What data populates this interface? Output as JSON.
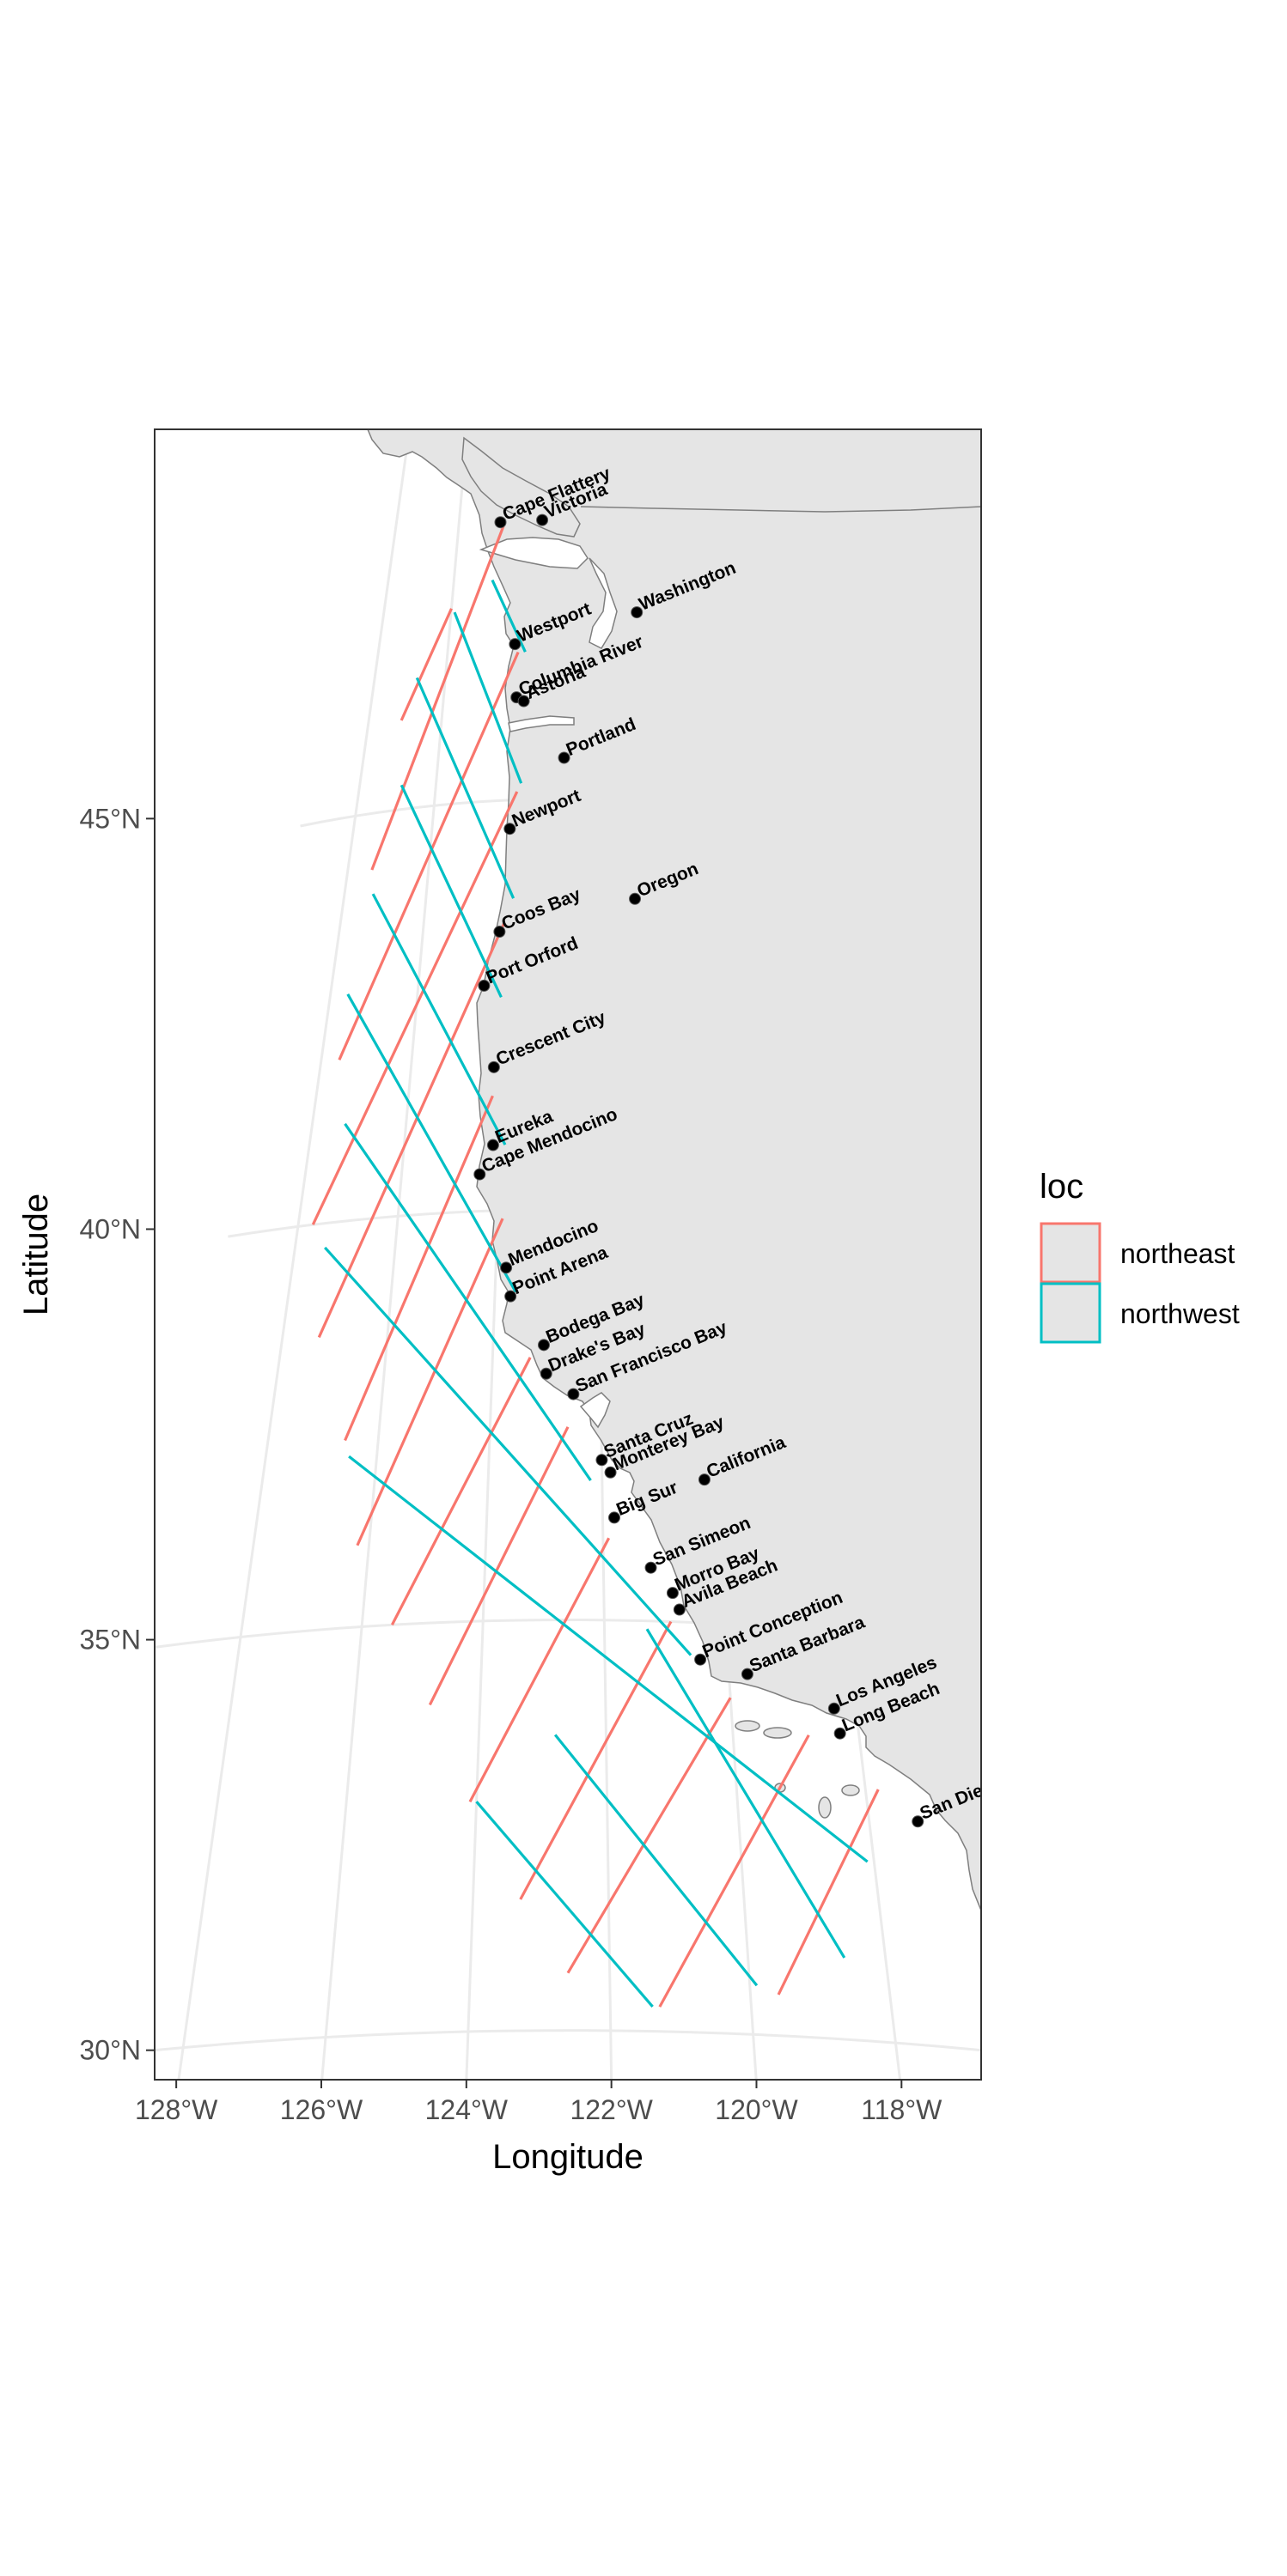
{
  "axes": {
    "xlabel": "Longitude",
    "ylabel": "Latitude",
    "x_ticks": [
      "128°W",
      "126°W",
      "124°W",
      "122°W",
      "120°W",
      "118°W"
    ],
    "x_tick_values": [
      -128,
      -126,
      -124,
      -122,
      -120,
      -118
    ],
    "y_ticks": [
      "30°N",
      "35°N",
      "40°N",
      "45°N"
    ],
    "y_tick_values": [
      30,
      35,
      40,
      45
    ],
    "xlim": [
      -128.4,
      -116.8
    ],
    "ylim": [
      29.4,
      49.5
    ]
  },
  "legend": {
    "title": "loc",
    "items": [
      {
        "label": "northeast",
        "color": "#F8766D"
      },
      {
        "label": "northwest",
        "color": "#00BFC4"
      }
    ]
  },
  "colors": {
    "land": "#e5e5e5",
    "coast": "#7f7f7f",
    "grid": "#ebebeb",
    "panel_border": "#333333",
    "point": "#000000"
  },
  "places": [
    {
      "name": "Cape Flattery",
      "lon": -124.7,
      "lat": 48.4
    },
    {
      "name": "Victoria",
      "lon": -123.4,
      "lat": 48.4
    },
    {
      "name": "Washington",
      "lon": -120.6,
      "lat": 47.3
    },
    {
      "name": "Westport",
      "lon": -124.1,
      "lat": 46.9
    },
    {
      "name": "Columbia River",
      "lon": -124.0,
      "lat": 46.25
    },
    {
      "name": "Astoria",
      "lon": -123.8,
      "lat": 46.2
    },
    {
      "name": "Portland",
      "lon": -122.7,
      "lat": 45.5
    },
    {
      "name": "Newport",
      "lon": -124.05,
      "lat": 44.65
    },
    {
      "name": "Coos Bay",
      "lon": -124.2,
      "lat": 43.4
    },
    {
      "name": "Oregon",
      "lon": -121.0,
      "lat": 43.8
    },
    {
      "name": "Port Orford",
      "lon": -124.5,
      "lat": 42.75
    },
    {
      "name": "Crescent City",
      "lon": -124.2,
      "lat": 41.75
    },
    {
      "name": "Eureka",
      "lon": -124.15,
      "lat": 40.8
    },
    {
      "name": "Cape Mendocino",
      "lon": -124.4,
      "lat": 40.45
    },
    {
      "name": "Mendocino",
      "lon": -123.8,
      "lat": 39.3
    },
    {
      "name": "Point Arena",
      "lon": -123.7,
      "lat": 38.95
    },
    {
      "name": "Bodega Bay",
      "lon": -123.05,
      "lat": 38.35
    },
    {
      "name": "Drake's Bay",
      "lon": -123.0,
      "lat": 38.0
    },
    {
      "name": "San Francisco Bay",
      "lon": -122.5,
      "lat": 37.75
    },
    {
      "name": "Santa Cruz",
      "lon": -122.0,
      "lat": 36.95
    },
    {
      "name": "Monterey Bay",
      "lon": -121.85,
      "lat": 36.8
    },
    {
      "name": "California",
      "lon": -120.2,
      "lat": 36.75
    },
    {
      "name": "Big Sur",
      "lon": -121.8,
      "lat": 36.25
    },
    {
      "name": "San Simeon",
      "lon": -121.2,
      "lat": 35.65
    },
    {
      "name": "Morro Bay",
      "lon": -120.85,
      "lat": 35.35
    },
    {
      "name": "Avila Beach",
      "lon": -120.75,
      "lat": 35.15
    },
    {
      "name": "Point Conception",
      "lon": -120.45,
      "lat": 34.55
    },
    {
      "name": "Santa Barbara",
      "lon": -119.7,
      "lat": 34.4
    },
    {
      "name": "Los Angeles",
      "lon": -118.35,
      "lat": 34.05
    },
    {
      "name": "Long Beach",
      "lon": -118.3,
      "lat": 33.75
    },
    {
      "name": "San Diego",
      "lon": -117.25,
      "lat": 32.75
    }
  ],
  "transects": [
    {
      "loc": "northeast",
      "start": [
        -124.6,
        48.35
      ],
      "end": [
        -127.4,
        44.3
      ]
    },
    {
      "loc": "northeast",
      "start": [
        -126.0,
        47.4
      ],
      "end": [
        -127.1,
        46.1
      ]
    },
    {
      "loc": "northeast",
      "start": [
        -124.0,
        46.8
      ],
      "end": [
        -127.6,
        42.0
      ]
    },
    {
      "loc": "northeast",
      "start": [
        -123.9,
        45.1
      ],
      "end": [
        -127.7,
        40.0
      ]
    },
    {
      "loc": "northeast",
      "start": [
        -124.1,
        43.5
      ],
      "end": [
        -127.3,
        38.6
      ]
    },
    {
      "loc": "northeast",
      "start": [
        -124.2,
        41.4
      ],
      "end": [
        -126.6,
        37.3
      ]
    },
    {
      "loc": "northeast",
      "start": [
        -123.9,
        39.9
      ],
      "end": [
        -126.2,
        36.0
      ]
    },
    {
      "loc": "northeast",
      "start": [
        -123.3,
        38.2
      ],
      "end": [
        -125.5,
        35.0
      ]
    },
    {
      "loc": "northeast",
      "start": [
        -122.6,
        37.35
      ],
      "end": [
        -124.8,
        34.0
      ]
    },
    {
      "loc": "northeast",
      "start": [
        -121.9,
        36.0
      ],
      "end": [
        -124.1,
        32.8
      ]
    },
    {
      "loc": "northeast",
      "start": [
        -120.9,
        35.0
      ],
      "end": [
        -123.3,
        31.6
      ]
    },
    {
      "loc": "northeast",
      "start": [
        -120.0,
        34.1
      ],
      "end": [
        -122.6,
        30.7
      ]
    },
    {
      "loc": "northeast",
      "start": [
        -118.8,
        33.7
      ],
      "end": [
        -121.3,
        30.3
      ]
    },
    {
      "loc": "northeast",
      "start": [
        -117.8,
        33.1
      ],
      "end": [
        -119.6,
        30.5
      ]
    },
    {
      "loc": "northwest",
      "start": [
        -124.85,
        47.7
      ],
      "end": [
        -123.8,
        46.8
      ]
    },
    {
      "loc": "northwest",
      "start": [
        -125.9,
        47.35
      ],
      "end": [
        -123.8,
        45.2
      ]
    },
    {
      "loc": "northwest",
      "start": [
        -126.8,
        46.6
      ],
      "end": [
        -123.9,
        43.8
      ]
    },
    {
      "loc": "northwest",
      "start": [
        -126.9,
        45.3
      ],
      "end": [
        -124.1,
        42.6
      ]
    },
    {
      "loc": "northwest",
      "start": [
        -127.3,
        44.0
      ],
      "end": [
        -123.9,
        40.8
      ]
    },
    {
      "loc": "northwest",
      "start": [
        -127.6,
        42.8
      ],
      "end": [
        -123.6,
        39.0
      ]
    },
    {
      "loc": "northwest",
      "start": [
        -127.3,
        41.2
      ],
      "end": [
        -122.2,
        36.7
      ]
    },
    {
      "loc": "northwest",
      "start": [
        -127.4,
        39.7
      ],
      "end": [
        -120.6,
        34.6
      ]
    },
    {
      "loc": "northwest",
      "start": [
        -126.5,
        37.1
      ],
      "end": [
        -118.1,
        32.2
      ]
    },
    {
      "loc": "northwest",
      "start": [
        -124.0,
        32.8
      ],
      "end": [
        -121.4,
        30.3
      ]
    },
    {
      "loc": "northwest",
      "start": [
        -122.8,
        33.6
      ],
      "end": [
        -119.9,
        30.6
      ]
    },
    {
      "loc": "northwest",
      "start": [
        -121.3,
        34.9
      ],
      "end": [
        -118.6,
        31.0
      ]
    }
  ]
}
